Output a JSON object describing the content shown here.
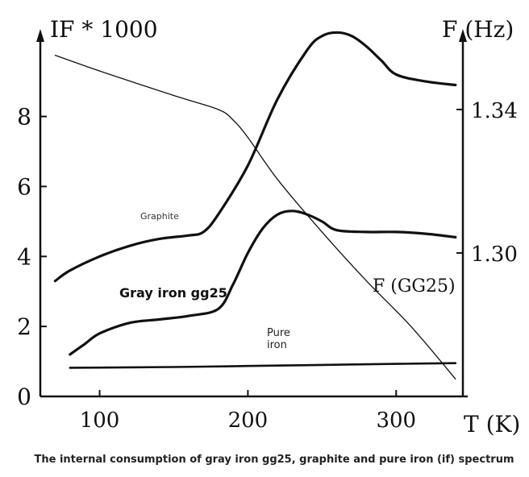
{
  "chart_data": {
    "type": "line",
    "x_axis": {
      "label": "T (K)",
      "ticks": [
        100,
        200,
        300
      ],
      "range": [
        60,
        345
      ]
    },
    "y_left_axis": {
      "label": "IF * 1000",
      "ticks": [
        0,
        2,
        4,
        6,
        8
      ],
      "range": [
        0,
        10.5
      ]
    },
    "y_right_axis": {
      "label": "F (Hz)",
      "ticks": [
        1.3,
        1.34
      ],
      "tick_labels": [
        "1.30",
        "1.34"
      ]
    },
    "series": [
      {
        "name": "Graphite",
        "axis": "left",
        "x": [
          70,
          80,
          100,
          120,
          140,
          160,
          170,
          180,
          200,
          220,
          240,
          250,
          260,
          270,
          280,
          290,
          300,
          320,
          340
        ],
        "y": [
          3.3,
          3.6,
          4.0,
          4.3,
          4.5,
          4.6,
          4.7,
          5.2,
          6.6,
          8.5,
          9.9,
          10.3,
          10.4,
          10.3,
          10.0,
          9.6,
          9.2,
          9.0,
          8.9
        ]
      },
      {
        "name": "Gray iron gg25",
        "axis": "left",
        "x": [
          80,
          90,
          100,
          120,
          140,
          160,
          180,
          190,
          200,
          210,
          220,
          230,
          240,
          250,
          260,
          280,
          300,
          320,
          340
        ],
        "y": [
          1.2,
          1.5,
          1.8,
          2.1,
          2.2,
          2.3,
          2.5,
          3.2,
          4.1,
          4.8,
          5.2,
          5.3,
          5.2,
          5.0,
          4.75,
          4.7,
          4.7,
          4.65,
          4.55
        ]
      },
      {
        "name": "Pure iron",
        "axis": "left",
        "x": [
          80,
          150,
          200,
          250,
          300,
          340
        ],
        "y": [
          0.82,
          0.84,
          0.87,
          0.9,
          0.93,
          0.95
        ]
      },
      {
        "name": "F (GG25)",
        "axis": "right",
        "x": [
          70,
          100,
          150,
          180,
          190,
          200,
          220,
          250,
          280,
          310,
          340
        ],
        "y": [
          9.75,
          9.3,
          8.6,
          8.2,
          7.9,
          7.4,
          6.2,
          4.7,
          3.3,
          2.0,
          0.5
        ]
      }
    ],
    "annotations": {
      "graphite": "Graphite",
      "gray_iron": "Gray iron gg25",
      "pure_iron_1": "Pure",
      "pure_iron_2": "iron",
      "f_gg25": "F (GG25)"
    },
    "caption": "The internal consumption of gray iron gg25, graphite and pure iron (if) spectrum"
  }
}
